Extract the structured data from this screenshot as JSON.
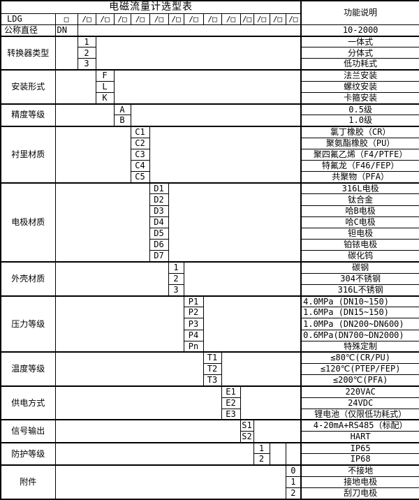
{
  "palette": {
    "background": "#ffffff",
    "border": "#000000",
    "text": "#000000"
  },
  "header": {
    "title": "电磁流量计选型表",
    "function_column": "功能说明"
  },
  "model": {
    "prefix": "LDG",
    "boxes": [
      "□",
      "/□",
      "/□",
      "/□",
      "/□",
      "/□",
      "/□",
      "/□",
      "/□",
      "/□",
      "/□",
      "/□",
      "/□",
      "/□"
    ]
  },
  "blocks": [
    {
      "id": "nominal-diameter",
      "category": "公称直径",
      "slot": 1,
      "codes": [
        "DN"
      ],
      "descs": [
        "10-2000"
      ]
    },
    {
      "id": "converter-type",
      "category": "转换器类型",
      "slot": 2,
      "codes": [
        "1",
        "2",
        "3"
      ],
      "descs": [
        "一体式",
        "分体式",
        "低功耗式"
      ]
    },
    {
      "id": "installation-type",
      "category": "安装形式",
      "slot": 3,
      "codes": [
        "F",
        "L",
        "K"
      ],
      "descs": [
        "法兰安装",
        "螺纹安装",
        "卡箍安装"
      ]
    },
    {
      "id": "accuracy-class",
      "category": "精度等级",
      "slot": 4,
      "codes": [
        "A",
        "B"
      ],
      "descs": [
        "0.5级",
        "1.0级"
      ]
    },
    {
      "id": "liner-material",
      "category": "衬里材质",
      "slot": 5,
      "codes": [
        "C1",
        "C2",
        "C3",
        "C4",
        "C5"
      ],
      "descs": [
        "氯丁橡胶（CR）",
        "聚氨酯橡胶（PU）",
        "聚四氟乙烯（F4/PTFE）",
        "特氟龙（F46/FEP）",
        "共聚物（PFA）"
      ]
    },
    {
      "id": "electrode-material",
      "category": "电极材质",
      "slot": 6,
      "codes": [
        "D1",
        "D2",
        "D3",
        "D4",
        "D5",
        "D6",
        "D7"
      ],
      "descs": [
        "316L电极",
        "钛合金",
        "哈B电极",
        "哈C电极",
        "钽电极",
        "铂铱电极",
        "碳化钨"
      ]
    },
    {
      "id": "housing-material",
      "category": "外壳材质",
      "slot": 7,
      "codes": [
        "1",
        "2",
        "3"
      ],
      "descs": [
        "碳钢",
        "304不锈钢",
        "316L不锈钢"
      ]
    },
    {
      "id": "pressure-rating",
      "category": "压力等级",
      "slot": 8,
      "codes": [
        "P1",
        "P2",
        "P3",
        "P4",
        "Pn"
      ],
      "descs": [
        "4.0MPa (DN10~150)",
        "1.6MPa (DN15~150)",
        "1.0MPa (DN200~DN600)",
        "0.6MPa(DN700~DN2000)",
        "特殊定制"
      ],
      "desc_align": [
        "left",
        "left",
        "left",
        "left",
        "center"
      ]
    },
    {
      "id": "temperature-rating",
      "category": "温度等级",
      "slot": 9,
      "codes": [
        "T1",
        "T2",
        "T3"
      ],
      "descs": [
        "≤80℃(CR/PU)",
        "≤120℃(PTEP/FEP)",
        "≤200℃(PFA)"
      ]
    },
    {
      "id": "power-supply",
      "category": "供电方式",
      "slot": 10,
      "codes": [
        "E1",
        "E2",
        "E3"
      ],
      "descs": [
        "220VAC",
        "24VDC",
        "锂电池（仅限低功耗式）"
      ]
    },
    {
      "id": "signal-output",
      "category": "信号输出",
      "slot": 11,
      "codes": [
        "S1",
        "S2"
      ],
      "descs": [
        "4-20mA+RS485（标配）",
        "HART"
      ]
    },
    {
      "id": "protection-rating",
      "category": "防护等级",
      "slot": 12,
      "codes": [
        "1",
        "2"
      ],
      "descs": [
        "IP65",
        "IP68"
      ],
      "split_right": true
    },
    {
      "id": "accessories",
      "category": "附件",
      "slot": 14,
      "codes": [
        "0",
        "1",
        "2"
      ],
      "descs": [
        "不接地",
        "接地电极",
        "刮刀电极"
      ]
    }
  ]
}
